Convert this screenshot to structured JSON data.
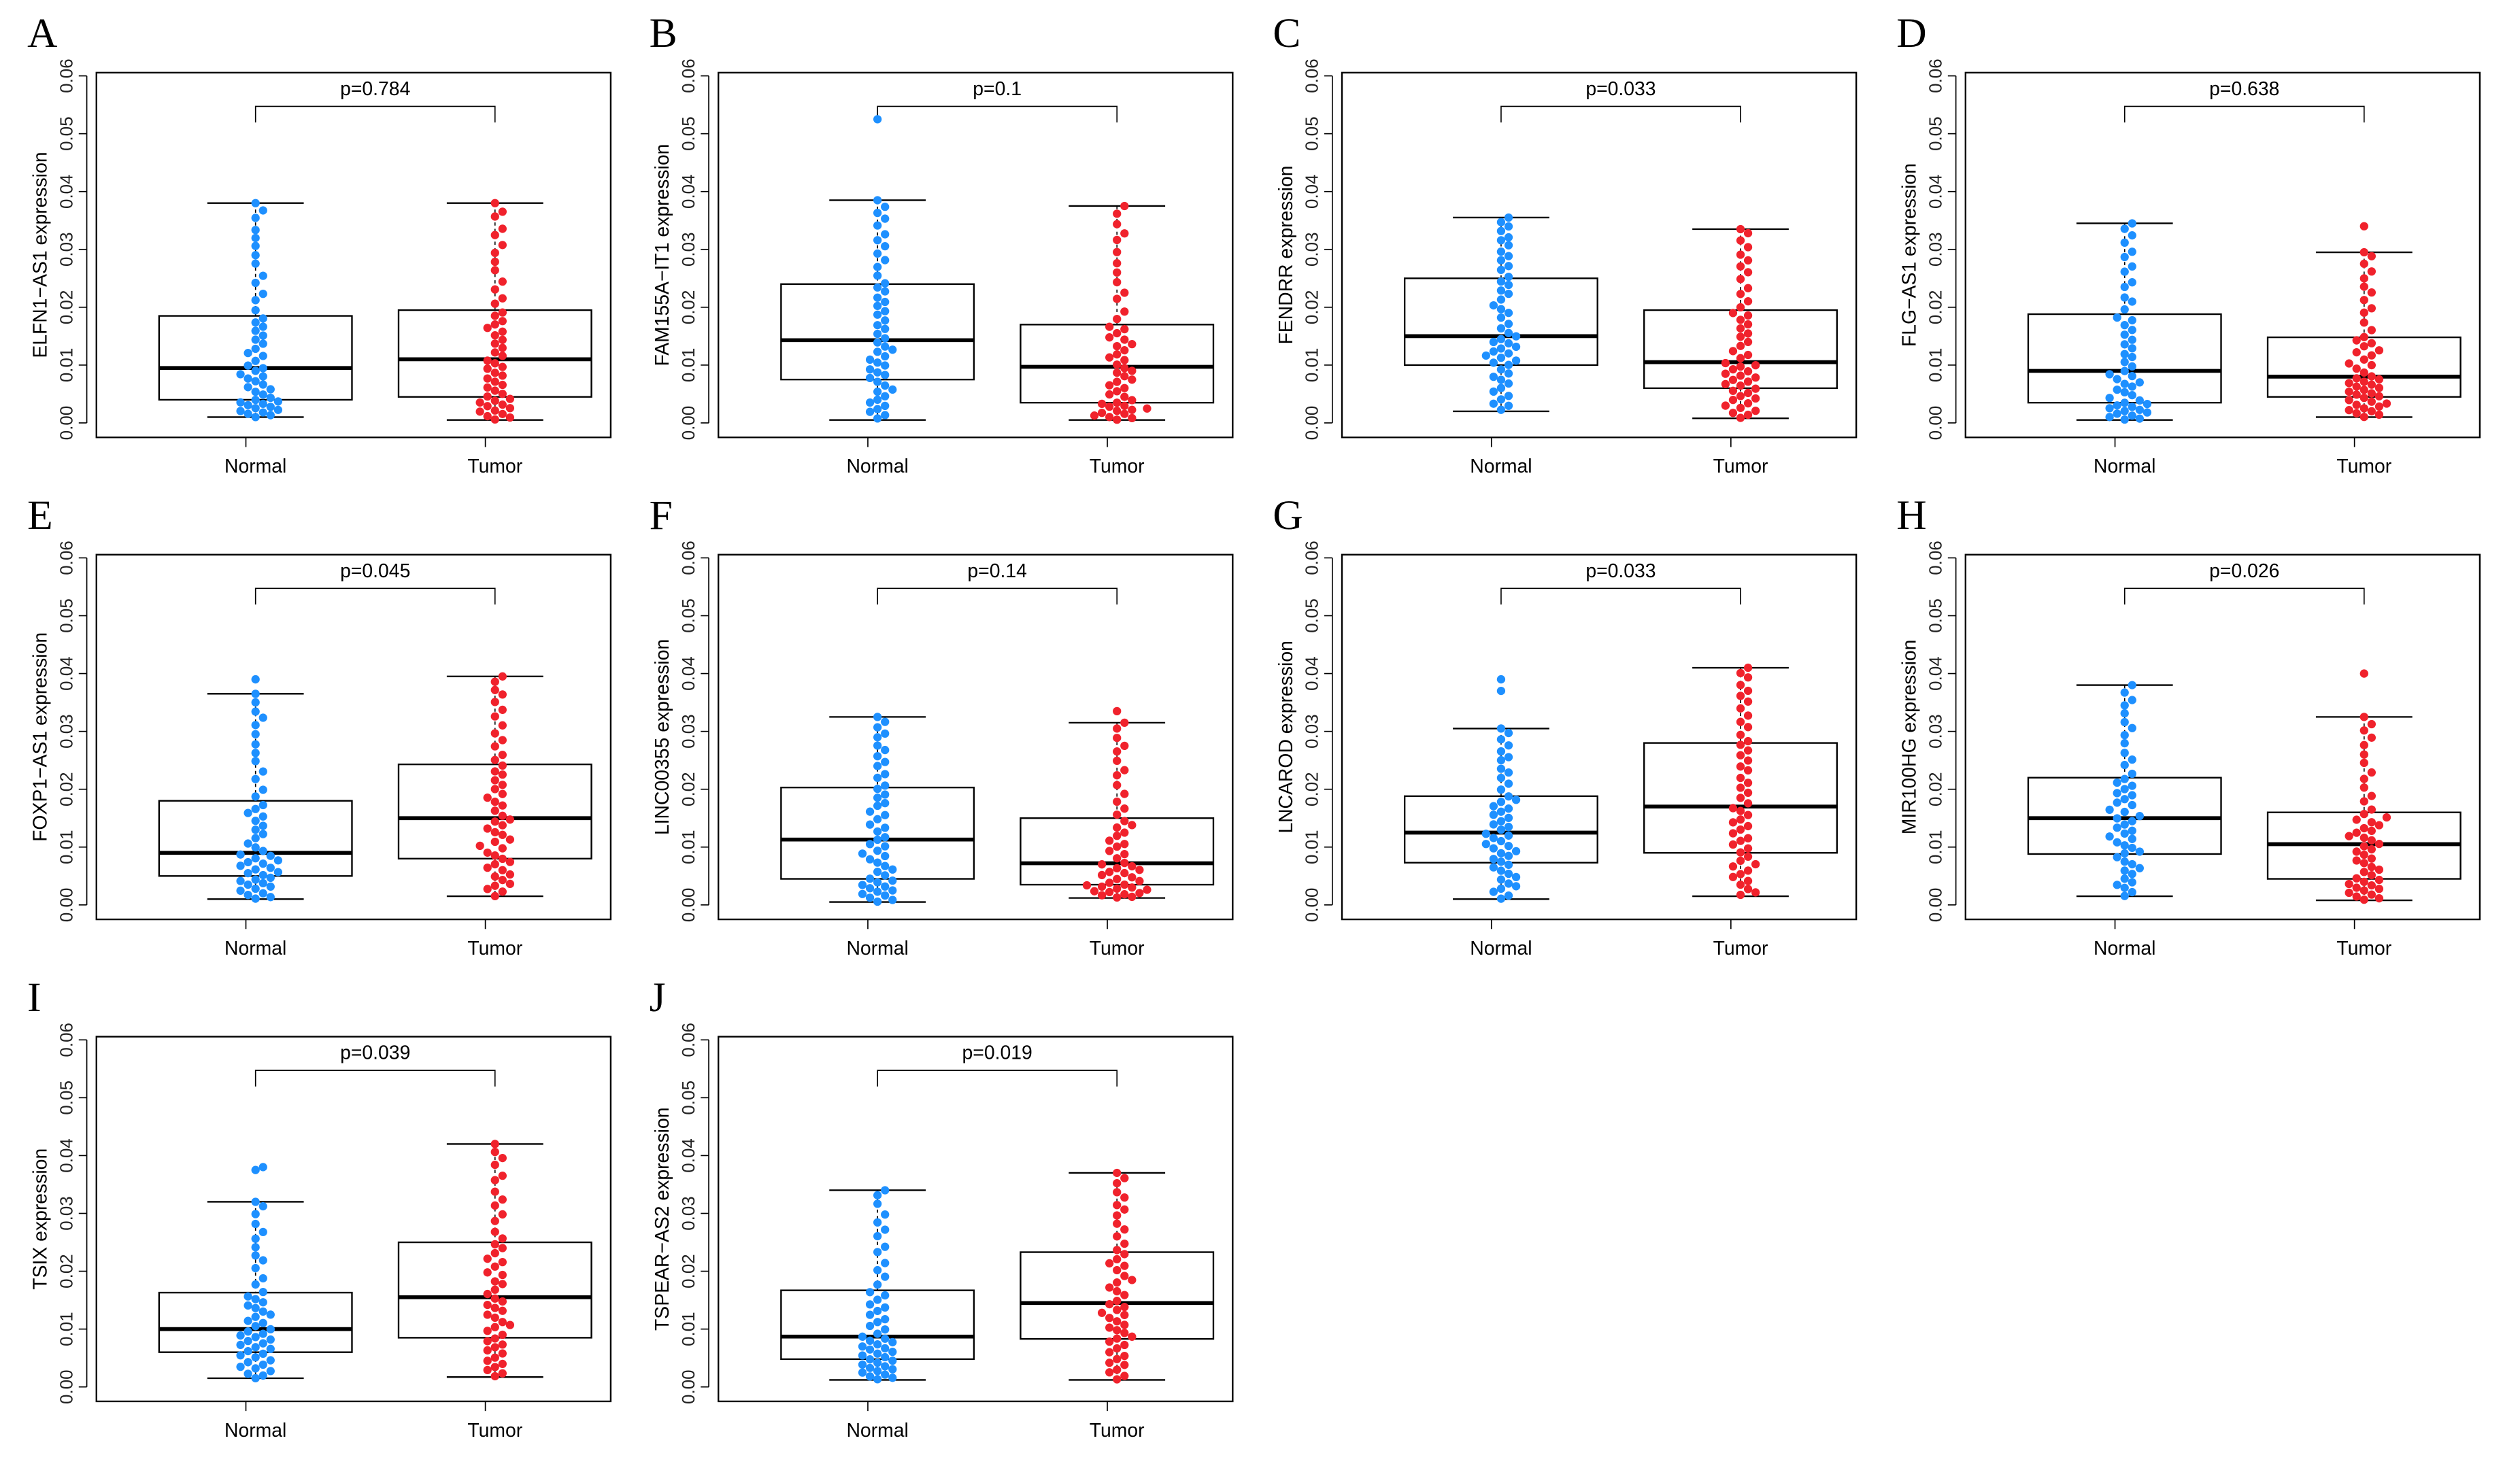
{
  "colors": {
    "normal": "#1E90FF",
    "tumor": "#F0222C"
  },
  "chart_data": [
    {
      "type": "box",
      "panel": "A",
      "ylabel": "ELFN1−AS1 expression",
      "pvalue": "p=0.784",
      "categories": [
        "Normal",
        "Tumor"
      ],
      "ylim": [
        0,
        0.06
      ],
      "yticks": [
        "0.00",
        "0.01",
        "0.02",
        "0.03",
        "0.04",
        "0.05",
        "0.06"
      ],
      "groups": [
        {
          "name": "Normal",
          "whisker_low": 0.001,
          "q1": 0.004,
          "median": 0.0095,
          "q3": 0.0185,
          "whisker_high": 0.038,
          "outliers": [],
          "n": 50
        },
        {
          "name": "Tumor",
          "whisker_low": 0.0005,
          "q1": 0.0045,
          "median": 0.011,
          "q3": 0.0195,
          "whisker_high": 0.038,
          "outliers": [],
          "n": 50
        }
      ]
    },
    {
      "type": "box",
      "panel": "B",
      "ylabel": "FAM155A−IT1 expression",
      "pvalue": "p=0.1",
      "categories": [
        "Normal",
        "Tumor"
      ],
      "ylim": [
        0,
        0.06
      ],
      "yticks": [
        "0.00",
        "0.01",
        "0.02",
        "0.03",
        "0.04",
        "0.05",
        "0.06"
      ],
      "groups": [
        {
          "name": "Normal",
          "whisker_low": 0.0005,
          "q1": 0.0075,
          "median": 0.0143,
          "q3": 0.024,
          "whisker_high": 0.0385,
          "outliers": [
            0.0525
          ],
          "n": 50
        },
        {
          "name": "Tumor",
          "whisker_low": 0.0005,
          "q1": 0.0035,
          "median": 0.0097,
          "q3": 0.017,
          "whisker_high": 0.0375,
          "outliers": [],
          "n": 50
        }
      ]
    },
    {
      "type": "box",
      "panel": "C",
      "ylabel": "FENDRR expression",
      "pvalue": "p=0.033",
      "categories": [
        "Normal",
        "Tumor"
      ],
      "ylim": [
        0,
        0.06
      ],
      "yticks": [
        "0.00",
        "0.01",
        "0.02",
        "0.03",
        "0.04",
        "0.05",
        "0.06"
      ],
      "groups": [
        {
          "name": "Normal",
          "whisker_low": 0.002,
          "q1": 0.01,
          "median": 0.015,
          "q3": 0.025,
          "whisker_high": 0.0355,
          "outliers": [],
          "n": 50
        },
        {
          "name": "Tumor",
          "whisker_low": 0.0008,
          "q1": 0.006,
          "median": 0.0105,
          "q3": 0.0195,
          "whisker_high": 0.0335,
          "outliers": [],
          "n": 50
        }
      ]
    },
    {
      "type": "box",
      "panel": "D",
      "ylabel": "FLG−AS1 expression",
      "pvalue": "p=0.638",
      "categories": [
        "Normal",
        "Tumor"
      ],
      "ylim": [
        0,
        0.06
      ],
      "yticks": [
        "0.00",
        "0.01",
        "0.02",
        "0.03",
        "0.04",
        "0.05",
        "0.06"
      ],
      "groups": [
        {
          "name": "Normal",
          "whisker_low": 0.0005,
          "q1": 0.0035,
          "median": 0.009,
          "q3": 0.0188,
          "whisker_high": 0.0345,
          "outliers": [],
          "n": 50
        },
        {
          "name": "Tumor",
          "whisker_low": 0.001,
          "q1": 0.0045,
          "median": 0.008,
          "q3": 0.0148,
          "whisker_high": 0.0295,
          "outliers": [
            0.034
          ],
          "n": 50
        }
      ]
    },
    {
      "type": "box",
      "panel": "E",
      "ylabel": "FOXP1−AS1 expression",
      "pvalue": "p=0.045",
      "categories": [
        "Normal",
        "Tumor"
      ],
      "ylim": [
        0,
        0.06
      ],
      "yticks": [
        "0.00",
        "0.01",
        "0.02",
        "0.03",
        "0.04",
        "0.05",
        "0.06"
      ],
      "groups": [
        {
          "name": "Normal",
          "whisker_low": 0.001,
          "q1": 0.005,
          "median": 0.009,
          "q3": 0.018,
          "whisker_high": 0.0365,
          "outliers": [
            0.039
          ],
          "n": 50
        },
        {
          "name": "Tumor",
          "whisker_low": 0.0015,
          "q1": 0.008,
          "median": 0.015,
          "q3": 0.0243,
          "whisker_high": 0.0395,
          "outliers": [],
          "n": 50
        }
      ]
    },
    {
      "type": "box",
      "panel": "F",
      "ylabel": "LINC00355 expression",
      "pvalue": "p=0.14",
      "categories": [
        "Normal",
        "Tumor"
      ],
      "ylim": [
        0,
        0.06
      ],
      "yticks": [
        "0.00",
        "0.01",
        "0.02",
        "0.03",
        "0.04",
        "0.05",
        "0.06"
      ],
      "groups": [
        {
          "name": "Normal",
          "whisker_low": 0.0005,
          "q1": 0.0045,
          "median": 0.0113,
          "q3": 0.0203,
          "whisker_high": 0.0325,
          "outliers": [],
          "n": 50
        },
        {
          "name": "Tumor",
          "whisker_low": 0.0012,
          "q1": 0.0035,
          "median": 0.0072,
          "q3": 0.015,
          "whisker_high": 0.0315,
          "outliers": [
            0.0335
          ],
          "n": 50
        }
      ]
    },
    {
      "type": "box",
      "panel": "G",
      "ylabel": "LNCAROD expression",
      "pvalue": "p=0.033",
      "categories": [
        "Normal",
        "Tumor"
      ],
      "ylim": [
        0,
        0.06
      ],
      "yticks": [
        "0.00",
        "0.01",
        "0.02",
        "0.03",
        "0.04",
        "0.05",
        "0.06"
      ],
      "groups": [
        {
          "name": "Normal",
          "whisker_low": 0.001,
          "q1": 0.0073,
          "median": 0.0125,
          "q3": 0.0188,
          "whisker_high": 0.0305,
          "outliers": [
            0.037,
            0.039
          ],
          "n": 50
        },
        {
          "name": "Tumor",
          "whisker_low": 0.0015,
          "q1": 0.009,
          "median": 0.017,
          "q3": 0.028,
          "whisker_high": 0.041,
          "outliers": [],
          "n": 50
        }
      ]
    },
    {
      "type": "box",
      "panel": "H",
      "ylabel": "MIR100HG expression",
      "pvalue": "p=0.026",
      "categories": [
        "Normal",
        "Tumor"
      ],
      "ylim": [
        0,
        0.06
      ],
      "yticks": [
        "0.00",
        "0.01",
        "0.02",
        "0.03",
        "0.04",
        "0.05",
        "0.06"
      ],
      "groups": [
        {
          "name": "Normal",
          "whisker_low": 0.0015,
          "q1": 0.0088,
          "median": 0.015,
          "q3": 0.022,
          "whisker_high": 0.038,
          "outliers": [],
          "n": 50
        },
        {
          "name": "Tumor",
          "whisker_low": 0.0008,
          "q1": 0.0045,
          "median": 0.0105,
          "q3": 0.016,
          "whisker_high": 0.0325,
          "outliers": [
            0.04
          ],
          "n": 50
        }
      ]
    },
    {
      "type": "box",
      "panel": "I",
      "ylabel": "TSIX expression",
      "pvalue": "p=0.039",
      "categories": [
        "Normal",
        "Tumor"
      ],
      "ylim": [
        0,
        0.06
      ],
      "yticks": [
        "0.00",
        "0.01",
        "0.02",
        "0.03",
        "0.04",
        "0.05",
        "0.06"
      ],
      "groups": [
        {
          "name": "Normal",
          "whisker_low": 0.0015,
          "q1": 0.006,
          "median": 0.01,
          "q3": 0.0163,
          "whisker_high": 0.032,
          "outliers": [
            0.0375,
            0.038
          ],
          "n": 50
        },
        {
          "name": "Tumor",
          "whisker_low": 0.0017,
          "q1": 0.0085,
          "median": 0.0155,
          "q3": 0.025,
          "whisker_high": 0.042,
          "outliers": [],
          "n": 50
        }
      ]
    },
    {
      "type": "box",
      "panel": "J",
      "ylabel": "TSPEAR−AS2 expression",
      "pvalue": "p=0.019",
      "categories": [
        "Normal",
        "Tumor"
      ],
      "ylim": [
        0,
        0.06
      ],
      "yticks": [
        "0.00",
        "0.01",
        "0.02",
        "0.03",
        "0.04",
        "0.05",
        "0.06"
      ],
      "groups": [
        {
          "name": "Normal",
          "whisker_low": 0.0012,
          "q1": 0.0048,
          "median": 0.0087,
          "q3": 0.0167,
          "whisker_high": 0.034,
          "outliers": [],
          "n": 50
        },
        {
          "name": "Tumor",
          "whisker_low": 0.0012,
          "q1": 0.0083,
          "median": 0.0145,
          "q3": 0.0233,
          "whisker_high": 0.037,
          "outliers": [],
          "n": 50
        }
      ]
    }
  ]
}
